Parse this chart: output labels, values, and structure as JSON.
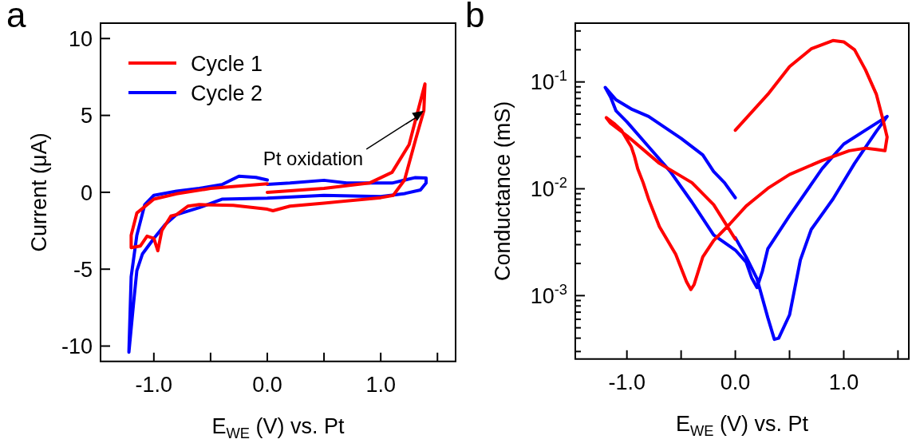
{
  "chart_data": [
    {
      "type": "line",
      "title": "a",
      "xlabel": "E$_{WE}$ (V) vs. Pt",
      "ylabel": "Current (μA)",
      "xlim": [
        -1.47,
        1.66
      ],
      "xticks": [
        {
          "value": -1,
          "label": "-1.0"
        },
        {
          "value": -0.5,
          "label": null
        },
        {
          "value": 0,
          "label": "0.0"
        },
        {
          "value": 0.5,
          "label": null
        },
        {
          "value": 1,
          "label": "1.0"
        },
        {
          "value": 1.5,
          "label": null
        }
      ],
      "ylim": [
        -11,
        11
      ],
      "yticks": [
        -10,
        -5,
        0,
        5,
        10
      ],
      "legend": "top left",
      "line_style": "solid",
      "annotations": [
        {
          "text": "Pt oxidation",
          "x": 1.38,
          "y": 5.3
        }
      ],
      "series": [
        {
          "name": "Cycle 1",
          "color": "#ff0000",
          "x": [
            0,
            0.5,
            0.9,
            1.1,
            1.25,
            1.39,
            1.38,
            1.31,
            1.21,
            1.11,
            1.0,
            0.5,
            0.2,
            0.05,
            0.0,
            -0.3,
            -0.6,
            -0.7,
            -0.8,
            -0.85,
            -0.93,
            -0.965,
            -1.0,
            -1.06,
            -1.12,
            -1.2,
            -1.2,
            -1.15,
            -1.0,
            -0.8,
            -0.5,
            0.0
          ],
          "values": [
            0.0,
            0.25,
            0.6,
            1.3,
            3.1,
            7.05,
            5.3,
            3.5,
            0.8,
            -0.2,
            -0.35,
            -0.7,
            -0.9,
            -1.2,
            -1.1,
            -0.85,
            -0.8,
            -0.9,
            -1.45,
            -1.55,
            -2.5,
            -3.8,
            -3.0,
            -2.85,
            -3.5,
            -3.6,
            -2.8,
            -1.35,
            -0.45,
            -0.1,
            0.25,
            0.55
          ]
        },
        {
          "name": "Cycle 2",
          "color": "#0000ff",
          "x": [
            0.0,
            -0.1,
            -0.25,
            -0.4,
            -0.6,
            -0.8,
            -1.0,
            -1.08,
            -1.15,
            -1.2,
            -1.22,
            -1.18,
            -1.15,
            -1.1,
            -1.0,
            -0.9,
            -0.8,
            -0.6,
            -0.4,
            0.0,
            0.5,
            1.0,
            1.2,
            1.35,
            1.4,
            1.4,
            1.3,
            1.1,
            0.7,
            0.5,
            0.2,
            0.0
          ],
          "values": [
            0.8,
            0.97,
            1.05,
            0.5,
            0.25,
            0.07,
            -0.2,
            -0.8,
            -2.8,
            -5.5,
            -10.4,
            -7.3,
            -5.1,
            -4.0,
            -3.0,
            -2.1,
            -1.45,
            -1.0,
            -0.45,
            -0.38,
            -0.2,
            -0.28,
            -0.1,
            0.15,
            0.6,
            0.93,
            0.95,
            0.6,
            0.6,
            0.78,
            0.6,
            0.52
          ]
        }
      ]
    },
    {
      "type": "line",
      "title": "b",
      "xlabel": "E$_{WE}$ (V) vs. Pt",
      "ylabel": "Conductance (mS)",
      "log": "y",
      "line_style": "solid",
      "xlim": [
        -1.476,
        1.6
      ],
      "xticks": [
        {
          "value": -1,
          "label": "-1.0"
        },
        {
          "value": -0.5,
          "label": null
        },
        {
          "value": 0,
          "label": "0.0"
        },
        {
          "value": 0.5,
          "label": null
        },
        {
          "value": 1,
          "label": "1.0"
        },
        {
          "value": 1.5,
          "label": null
        }
      ],
      "ylim": [
        0.000255,
        0.355
      ],
      "yticks": [
        {
          "value": 0.0003,
          "label": null
        },
        {
          "value": 0.0004,
          "label": null
        },
        {
          "value": 0.0005,
          "label": null
        },
        {
          "value": 0.0006,
          "label": null
        },
        {
          "value": 0.0007,
          "label": null
        },
        {
          "value": 0.0008,
          "label": null
        },
        {
          "value": 0.0009,
          "label": null
        },
        {
          "value": 0.001,
          "label": "10$^{-3}$"
        },
        {
          "value": 0.002,
          "label": null
        },
        {
          "value": 0.003,
          "label": null
        },
        {
          "value": 0.004,
          "label": null
        },
        {
          "value": 0.005,
          "label": null
        },
        {
          "value": 0.006,
          "label": null
        },
        {
          "value": 0.007,
          "label": null
        },
        {
          "value": 0.008,
          "label": null
        },
        {
          "value": 0.009,
          "label": null
        },
        {
          "value": 0.01,
          "label": "10$^{-2}$"
        },
        {
          "value": 0.02,
          "label": null
        },
        {
          "value": 0.03,
          "label": null
        },
        {
          "value": 0.04,
          "label": null
        },
        {
          "value": 0.05,
          "label": null
        },
        {
          "value": 0.06,
          "label": null
        },
        {
          "value": 0.07,
          "label": null
        },
        {
          "value": 0.08,
          "label": null
        },
        {
          "value": 0.09,
          "label": null
        },
        {
          "value": 0.1,
          "label": "10$^{-1}$"
        },
        {
          "value": 0.2,
          "label": null
        },
        {
          "value": 0.3,
          "label": null
        }
      ],
      "series": [
        {
          "color": "#ff0000",
          "x": [
            0.0,
            0.3,
            0.5,
            0.7,
            0.9,
            1.0,
            1.1,
            1.2,
            1.3,
            1.36,
            1.4,
            1.38,
            1.3,
            1.2,
            1.05,
            0.8,
            0.5,
            0.3,
            0.1,
            -0.05,
            -0.2,
            -0.3,
            -0.38,
            -0.41,
            -0.45,
            -0.55,
            -0.7,
            -0.8,
            -0.85,
            -0.9,
            -0.93,
            -0.96,
            -1.05,
            -1.12,
            -1.19,
            -1.15,
            -1.0,
            -0.7,
            -0.4,
            -0.2,
            0.0
          ],
          "values": [
            0.0353,
            0.0766,
            0.139,
            0.204,
            0.244,
            0.237,
            0.2,
            0.13,
            0.077,
            0.045,
            0.0305,
            0.0227,
            0.0233,
            0.024,
            0.0227,
            0.0184,
            0.0136,
            0.0101,
            0.0069,
            0.00469,
            0.00328,
            0.0023,
            0.00127,
            0.00114,
            0.00135,
            0.00244,
            0.00442,
            0.008,
            0.0114,
            0.0154,
            0.0201,
            0.0248,
            0.0353,
            0.041,
            0.0463,
            0.041,
            0.0314,
            0.0173,
            0.0114,
            0.0071,
            0.00338
          ]
        },
        {
          "color": "#0000ff",
          "x": [
            0.0,
            -0.1,
            -0.2,
            -0.3,
            -0.5,
            -0.8,
            -0.95,
            -1.1,
            -1.2,
            -1.15,
            -1.1,
            -1.0,
            -0.8,
            -0.6,
            -0.4,
            -0.2,
            0.0,
            0.1,
            0.15,
            0.2,
            0.25,
            0.3,
            0.5,
            0.8,
            1.0,
            1.2,
            1.4,
            1.3,
            1.1,
            0.9,
            0.7,
            0.6,
            0.5,
            0.4,
            0.36,
            0.3,
            0.2,
            0.1,
            0.0
          ],
          "values": [
            0.00824,
            0.0114,
            0.0145,
            0.0207,
            0.0296,
            0.0475,
            0.0552,
            0.068,
            0.0888,
            0.072,
            0.0536,
            0.0423,
            0.0248,
            0.0145,
            0.0075,
            0.0037,
            0.00267,
            0.00206,
            0.00147,
            0.00119,
            0.0017,
            0.00275,
            0.0056,
            0.0154,
            0.0262,
            0.0353,
            0.0475,
            0.0344,
            0.0173,
            0.008,
            0.00416,
            0.00216,
            0.00066,
            0.0004,
            0.00039,
            0.00062,
            0.00144,
            0.0023,
            0.00348
          ]
        }
      ]
    }
  ]
}
